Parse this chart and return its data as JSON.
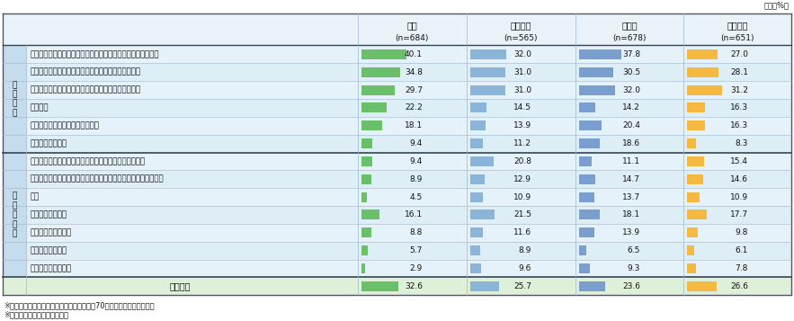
{
  "unit_label": "単位（%）",
  "header_cols": [
    "日本\n(n=684)",
    "アメリカ\n(n=565)",
    "ドイツ\n(n=678)",
    "イギリス\n(n=651)"
  ],
  "section1_label": "定\n型\n業\n務",
  "section2_label": "非\n定\n型\n業\n務",
  "rows": [
    {
      "label": "定型的な一般事務（例：伝票入力、請求書等の定型文書作成）",
      "values": [
        40.1,
        32.0,
        37.8,
        27.0
      ],
      "section": 1
    },
    {
      "label": "定型的な会計事務（例：経費申請のチェック、計算）",
      "values": [
        34.8,
        31.0,
        30.5,
        28.1
      ],
      "section": 1
    },
    {
      "label": "簡単な手作業の生産工程（例：単純加工、単純組立）",
      "values": [
        29.7,
        31.0,
        32.0,
        31.2
      ],
      "section": 1
    },
    {
      "label": "受付業務",
      "values": [
        22.2,
        14.5,
        14.2,
        16.3
      ],
      "section": 1
    },
    {
      "label": "顧客や外部からの問い合わせ対応",
      "values": [
        18.1,
        13.9,
        20.4,
        16.3
      ],
      "section": 1
    },
    {
      "label": "その他の定型業務",
      "values": [
        9.4,
        11.2,
        18.6,
        8.3
      ],
      "section": 1
    },
    {
      "label": "定型業務以外の事務作業（例：顧客別の営業資料作成）",
      "values": [
        9.4,
        20.8,
        11.1,
        15.4
      ],
      "section": 2
    },
    {
      "label": "複雑な手作業の生産工程（例：カスタマイズされた製品の加工）",
      "values": [
        8.9,
        12.9,
        14.7,
        14.6
      ],
      "section": 2
    },
    {
      "label": "営業",
      "values": [
        4.5,
        10.9,
        13.7,
        10.9
      ],
      "section": 2
    },
    {
      "label": "研究・分析・設計",
      "values": [
        16.1,
        21.5,
        18.1,
        17.7
      ],
      "section": 2
    },
    {
      "label": "販売・サービス提供",
      "values": [
        8.8,
        11.6,
        13.9,
        9.8
      ],
      "section": 2
    },
    {
      "label": "コンサルティング",
      "values": [
        5.7,
        8.9,
        6.5,
        6.1
      ],
      "section": 2
    },
    {
      "label": "その他の非定型作業",
      "values": [
        2.9,
        9.6,
        9.3,
        7.8
      ],
      "section": 2
    },
    {
      "label": "特になし",
      "values": [
        32.6,
        25.7,
        23.6,
        26.6
      ],
      "section": 0
    }
  ],
  "bar_colors": [
    "#6abf69",
    "#8ab4d8",
    "#7a9fcf",
    "#f5b942"
  ],
  "val_max": 40.1,
  "footnote1": "※他国の回答と合わせるため、日本の回答は70代の人の回答を除いた。",
  "footnote2": "※有職者に限定して集計した。",
  "bg_section": "#d6e9f5",
  "bg_row_light": "#e5f2f9",
  "bg_row_alt": "#ddeef6",
  "bg_special": "#dff0d8",
  "bg_header": "#e8f2f8",
  "bg_section_label": "#c5dced",
  "color_border_outer": "#555566",
  "color_border_inner": "#a0b8cc",
  "color_border_section": "#334455"
}
